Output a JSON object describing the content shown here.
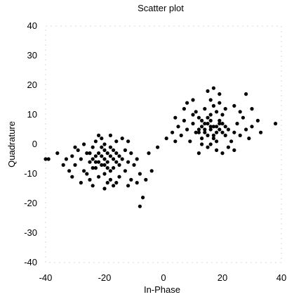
{
  "chart_data": {
    "type": "scatter",
    "title": "Scatter plot",
    "xlabel": "In-Phase",
    "ylabel": "Quadrature",
    "xlim": [
      -40,
      40
    ],
    "ylim": [
      -40,
      40
    ],
    "xticks": [
      "-40",
      "-20",
      "0",
      "20",
      "40"
    ],
    "yticks": [
      "40",
      "30",
      "20",
      "10",
      "0",
      "-10",
      "-20",
      "-30",
      "-40"
    ],
    "grid": false,
    "series": [
      {
        "values": [
          [
            -20,
            -5
          ],
          [
            -18,
            -4
          ],
          [
            -22,
            -6
          ],
          [
            -19,
            -3
          ],
          [
            -21,
            -7
          ],
          [
            -17,
            -5
          ],
          [
            -23,
            -4
          ],
          [
            -20,
            -2
          ],
          [
            -16,
            -6
          ],
          [
            -24,
            -5
          ],
          [
            -19,
            -8
          ],
          [
            -21,
            -1
          ],
          [
            -18,
            -9
          ],
          [
            -22,
            -3
          ],
          [
            -15,
            -4
          ],
          [
            -25,
            -6
          ],
          [
            -20,
            -10
          ],
          [
            -17,
            -2
          ],
          [
            -23,
            -8
          ],
          [
            -14,
            -5
          ],
          [
            -26,
            -3
          ],
          [
            -20,
            0
          ],
          [
            -18,
            -12
          ],
          [
            -22,
            -11
          ],
          [
            -12,
            -6
          ],
          [
            -28,
            -5
          ],
          [
            -19,
            -13
          ],
          [
            -24,
            -1
          ],
          [
            -16,
            1
          ],
          [
            -13,
            -9
          ],
          [
            -27,
            -9
          ],
          [
            -21,
            2
          ],
          [
            -15,
            -11
          ],
          [
            -25,
            -12
          ],
          [
            -11,
            -3
          ],
          [
            -29,
            -2
          ],
          [
            -17,
            -14
          ],
          [
            -23,
            1
          ],
          [
            -10,
            -7
          ],
          [
            -30,
            -7
          ],
          [
            -14,
            2
          ],
          [
            -26,
            -10
          ],
          [
            -31,
            -4
          ],
          [
            -9,
            -5
          ],
          [
            -20,
            -15
          ],
          [
            -18,
            3
          ],
          [
            -8,
            -10
          ],
          [
            -32,
            -9
          ],
          [
            -33,
            -5
          ],
          [
            -36,
            -3
          ],
          [
            -39,
            -5
          ],
          [
            -40,
            -5
          ],
          [
            -7,
            -18
          ],
          [
            -8,
            -21
          ],
          [
            -6,
            -12
          ],
          [
            -5,
            -3
          ],
          [
            -4,
            -9
          ],
          [
            -12,
            -14
          ],
          [
            -28,
            -13
          ],
          [
            -24,
            -14
          ],
          [
            -16,
            -13
          ],
          [
            -9,
            -13
          ],
          [
            -12,
            1
          ],
          [
            -27,
            0
          ],
          [
            -31,
            -11
          ],
          [
            -34,
            -7
          ],
          [
            -13,
            -2
          ],
          [
            -22,
            3
          ],
          [
            -11,
            -12
          ],
          [
            -30,
            -1
          ],
          [
            -15,
            -7
          ],
          [
            -25,
            -3
          ],
          [
            -19,
            -6
          ],
          [
            -21,
            -4
          ],
          [
            -17,
            -8
          ],
          [
            -23,
            -6
          ],
          [
            -16,
            -3
          ],
          [
            -24,
            -8
          ],
          [
            -20,
            -7
          ],
          [
            -18,
            -1
          ]
        ]
      },
      {
        "values": [
          [
            16,
            5
          ],
          [
            18,
            6
          ],
          [
            14,
            4
          ],
          [
            17,
            3
          ],
          [
            15,
            7
          ],
          [
            19,
            5
          ],
          [
            13,
            6
          ],
          [
            16,
            8
          ],
          [
            20,
            4
          ],
          [
            12,
            5
          ],
          [
            17,
            2
          ],
          [
            15,
            9
          ],
          [
            18,
            1
          ],
          [
            14,
            7
          ],
          [
            21,
            6
          ],
          [
            11,
            4
          ],
          [
            16,
            10
          ],
          [
            19,
            8
          ],
          [
            13,
            2
          ],
          [
            22,
            5
          ],
          [
            10,
            7
          ],
          [
            16,
            0
          ],
          [
            18,
            11
          ],
          [
            14,
            12
          ],
          [
            24,
            4
          ],
          [
            8,
            5
          ],
          [
            17,
            13
          ],
          [
            12,
            9
          ],
          [
            20,
            10
          ],
          [
            23,
            1
          ],
          [
            9,
            1
          ],
          [
            15,
            -1
          ],
          [
            21,
            12
          ],
          [
            11,
            11
          ],
          [
            25,
            7
          ],
          [
            7,
            8
          ],
          [
            19,
            14
          ],
          [
            13,
            0
          ],
          [
            26,
            3
          ],
          [
            6,
            3
          ],
          [
            22,
            -1
          ],
          [
            10,
            10
          ],
          [
            5,
            6
          ],
          [
            27,
            9
          ],
          [
            16,
            15
          ],
          [
            18,
            -2
          ],
          [
            28,
            5
          ],
          [
            4,
            9
          ],
          [
            3,
            4
          ],
          [
            30,
            6
          ],
          [
            33,
            4
          ],
          [
            38,
            7
          ],
          [
            17,
            19
          ],
          [
            19,
            17
          ],
          [
            28,
            17
          ],
          [
            30,
            12
          ],
          [
            32,
            8
          ],
          [
            24,
            13
          ],
          [
            8,
            14
          ],
          [
            4,
            1
          ],
          [
            20,
            -3
          ],
          [
            12,
            -3
          ],
          [
            7,
            12
          ],
          [
            26,
            11
          ],
          [
            29,
            2
          ],
          [
            -2,
            -1
          ],
          [
            1,
            2
          ],
          [
            15,
            18
          ],
          [
            10,
            15
          ],
          [
            24,
            -2
          ],
          [
            17,
            6
          ],
          [
            15,
            3
          ],
          [
            19,
            7
          ],
          [
            13,
            8
          ],
          [
            21,
            3
          ],
          [
            14,
            5
          ],
          [
            18,
            4
          ],
          [
            16,
            6
          ],
          [
            20,
            7
          ],
          [
            12,
            4
          ]
        ]
      }
    ]
  }
}
